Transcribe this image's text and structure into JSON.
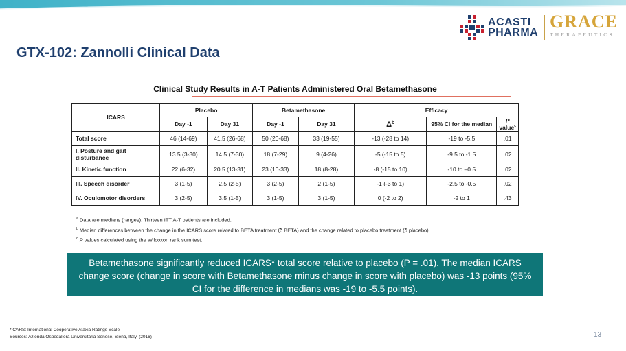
{
  "logos": {
    "acasti_line1": "ACASTI",
    "acasti_line2": "PHARMA",
    "grace_name": "GRACE",
    "grace_sub": "THERAPEUTICS"
  },
  "page_title": "GTX-102: Zannolli Clinical Data",
  "table": {
    "title": "Clinical Study Results in A-T Patients Administered Oral Betamethasone",
    "row_header": "ICARS",
    "groups": {
      "placebo": "Placebo",
      "beta": "Betamethasone",
      "efficacy": "Efficacy"
    },
    "subheaders": {
      "p_day1": "Day -1",
      "p_day31": "Day 31",
      "b_day1": "Day -1",
      "b_day31": "Day 31",
      "delta": "Δ",
      "delta_sup": "b",
      "ci": "95% CI for the median",
      "pval": "P",
      "pval_suffix": " value",
      "pval_sup": "c"
    },
    "rows": [
      {
        "label": "Total score",
        "p_day1": "46 (14-69)",
        "p_day31": "41.5 (26-68)",
        "b_day1": "50 (20-68)",
        "b_day31": "33 (19-55)",
        "delta": "-13 (-28 to 14)",
        "ci": "-19 to -5.5",
        "pval": ".01"
      },
      {
        "label": "I. Posture and gait disturbance",
        "p_day1": "13.5 (3-30)",
        "p_day31": "14.5 (7-30)",
        "b_day1": "18 (7-29)",
        "b_day31": "9 (4-26)",
        "delta": "-5 (-15 to 5)",
        "ci": "-9.5 to -1.5",
        "pval": ".02"
      },
      {
        "label": "II. Kinetic function",
        "p_day1": "22 (6-32)",
        "p_day31": "20.5 (13-31)",
        "b_day1": "23 (10-33)",
        "b_day31": "18 (8-28)",
        "delta": "-8 (-15 to 10)",
        "ci": "-10 to –0.5",
        "pval": ".02"
      },
      {
        "label": "III. Speech disorder",
        "p_day1": "3 (1-5)",
        "p_day31": "2.5 (2-5)",
        "b_day1": "3 (2-5)",
        "b_day31": "2 (1-5)",
        "delta": "-1 (-3 to 1)",
        "ci": "-2.5 to -0.5",
        "pval": ".02"
      },
      {
        "label": "IV. Oculomotor disorders",
        "p_day1": "3 (2-5)",
        "p_day31": "3.5 (1-5)",
        "b_day1": "3 (1-5)",
        "b_day31": "3 (1-5)",
        "delta": "0 (-2 to 2)",
        "ci": "-2 to 1",
        "pval": ".43"
      }
    ]
  },
  "footnotes": {
    "a_sup": "a",
    "a": "Data are medians (ranges). Thirteen ITT A-T patients are included.",
    "b_sup": "b",
    "b": "Median differences between the change in the ICARS score related to BETA treatment (δ BETA) and the change related to placebo treatment (δ placebo).",
    "c_sup": "c",
    "c_p": "P",
    "c": " values calculated using the Wilcoxon rank sum test."
  },
  "callout": "Betamethasone significantly reduced ICARS* total score relative to placebo (P = .01). The median ICARS change score (change in score with Betamethasone minus change in score with placebo) was -13 points (95% CI for the difference in medians was -19 to -5.5 points).",
  "bottom_notes": {
    "icars_def": "*ICARS: International Cooperative Ataxia Ratings Scale",
    "sources": "Sources: Azienda Ospedaliera Universitaria Senese, Siena, Italy. (2016)"
  },
  "page_number": "13",
  "colors": {
    "title_blue": "#1f3f6e",
    "callout_teal": "#0f7678",
    "grace_gold": "#d6a53b",
    "acasti_red": "#c8202f",
    "acasti_navy": "#1f3f6e"
  }
}
